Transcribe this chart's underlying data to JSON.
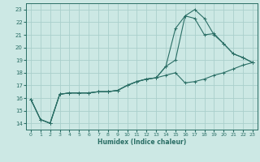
{
  "xlabel": "Humidex (Indice chaleur)",
  "xlim": [
    -0.5,
    23.5
  ],
  "ylim": [
    13.5,
    23.5
  ],
  "xticks": [
    0,
    1,
    2,
    3,
    4,
    5,
    6,
    7,
    8,
    9,
    10,
    11,
    12,
    13,
    14,
    15,
    16,
    17,
    18,
    19,
    20,
    21,
    22,
    23
  ],
  "yticks": [
    14,
    15,
    16,
    17,
    18,
    19,
    20,
    21,
    22,
    23
  ],
  "background_color": "#cce8e4",
  "grid_color": "#aacfcc",
  "line_color": "#2a6e65",
  "line1_x": [
    0,
    1,
    2,
    3,
    4,
    5,
    6,
    7,
    8,
    9,
    10,
    11,
    12,
    13,
    14,
    15,
    16,
    17,
    18,
    19,
    20,
    21,
    22,
    23
  ],
  "line1_y": [
    15.9,
    14.3,
    14.0,
    16.3,
    16.4,
    16.4,
    16.4,
    16.5,
    16.5,
    16.6,
    17.0,
    17.3,
    17.5,
    17.6,
    18.5,
    19.0,
    22.5,
    23.0,
    22.3,
    21.0,
    20.3,
    19.5,
    19.2,
    18.8
  ],
  "line2_x": [
    0,
    1,
    2,
    3,
    4,
    5,
    6,
    7,
    8,
    9,
    10,
    11,
    12,
    13,
    14,
    15,
    16,
    17,
    18,
    19,
    20,
    21,
    22,
    23
  ],
  "line2_y": [
    15.9,
    14.3,
    14.0,
    16.3,
    16.4,
    16.4,
    16.4,
    16.5,
    16.5,
    16.6,
    17.0,
    17.3,
    17.5,
    17.6,
    18.5,
    21.5,
    22.5,
    22.3,
    21.0,
    21.1,
    20.3,
    19.5,
    19.2,
    18.8
  ],
  "line3_x": [
    0,
    1,
    2,
    3,
    4,
    5,
    6,
    7,
    8,
    9,
    10,
    11,
    12,
    13,
    14,
    15,
    16,
    17,
    18,
    19,
    20,
    21,
    22,
    23
  ],
  "line3_y": [
    15.9,
    14.3,
    14.0,
    16.3,
    16.4,
    16.4,
    16.4,
    16.5,
    16.5,
    16.6,
    17.0,
    17.3,
    17.5,
    17.6,
    17.8,
    18.0,
    17.2,
    17.3,
    17.5,
    17.8,
    18.0,
    18.3,
    18.6,
    18.8
  ]
}
